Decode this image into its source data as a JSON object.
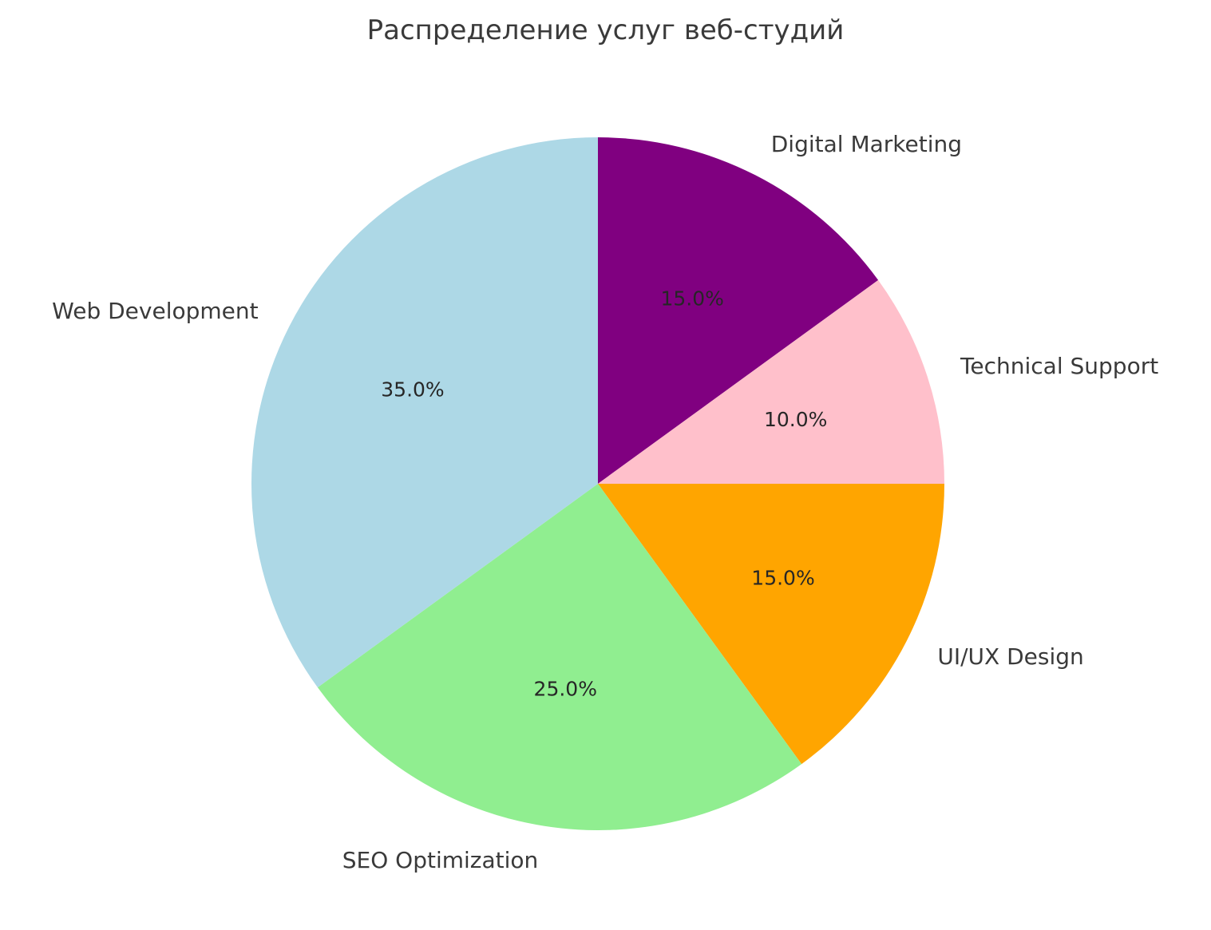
{
  "title": "Распределение услуг веб-студий",
  "text_color": "#3a3a3a",
  "chart_data": {
    "type": "pie",
    "title": "Распределение услуг веб-студий",
    "start_angle": 90,
    "direction": "clockwise",
    "label_distance": 1.1,
    "pct_distance": 0.6,
    "legend": "none",
    "segments": [
      {
        "label": "Digital Marketing",
        "value": 15.0,
        "pct_label": "15.0%",
        "color": "#800080"
      },
      {
        "label": "Technical Support",
        "value": 10.0,
        "pct_label": "10.0%",
        "color": "#FFC0CB"
      },
      {
        "label": "UI/UX Design",
        "value": 15.0,
        "pct_label": "15.0%",
        "color": "#FFA500"
      },
      {
        "label": "SEO Optimization",
        "value": 25.0,
        "pct_label": "25.0%",
        "color": "#90EE90"
      },
      {
        "label": "Web Development",
        "value": 35.0,
        "pct_label": "35.0%",
        "color": "#ADD8E6"
      }
    ]
  }
}
